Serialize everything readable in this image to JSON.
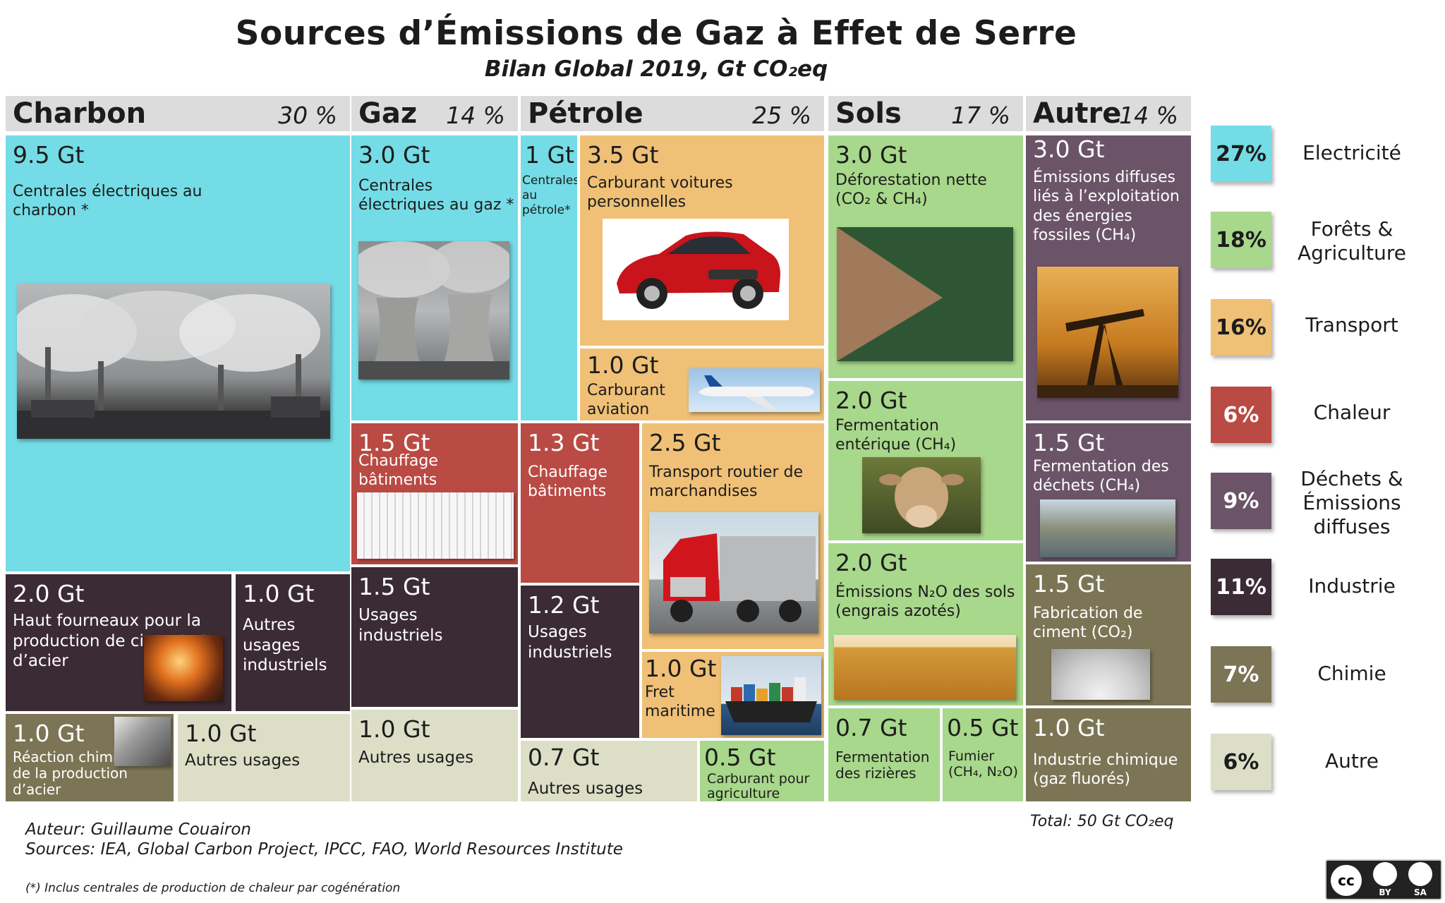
{
  "title": "Sources d’Émissions de Gaz à Effet de Serre",
  "subtitle": "Bilan Global 2019, Gt CO₂eq",
  "headers": [
    {
      "name": "Charbon",
      "pct": "30 %"
    },
    {
      "name": "Gaz",
      "pct": "14 %"
    },
    {
      "name": "Pétrole",
      "pct": "25 %"
    },
    {
      "name": "Sols",
      "pct": "17 %"
    },
    {
      "name": "Autre",
      "pct": "14 %"
    }
  ],
  "colors": {
    "electricite": "#74dce6",
    "forets": "#a8d88b",
    "transport": "#efc076",
    "chaleur": "#ba4a44",
    "dechets": "#6b5468",
    "industrie": "#3a2b34",
    "chimie": "#7c7555",
    "autre": "#dcdec6"
  },
  "chart_data": {
    "type": "treemap",
    "title": "Sources d’Émissions de Gaz à Effet de Serre",
    "subtitle": "Bilan Global 2019, Gt CO₂eq",
    "unit": "Gt CO₂eq",
    "groups": [
      {
        "name": "Charbon",
        "share_pct": 30
      },
      {
        "name": "Gaz",
        "share_pct": 14
      },
      {
        "name": "Pétrole",
        "share_pct": 25
      },
      {
        "name": "Sols",
        "share_pct": 17
      },
      {
        "name": "Autre",
        "share_pct": 14
      }
    ],
    "items": [
      {
        "group": "Charbon",
        "value": 9.5,
        "label": "Centrales électriques au charbon *",
        "category": "Electricité"
      },
      {
        "group": "Charbon",
        "value": 2.0,
        "label": "Haut fourneaux pour la production de ciment et d’acier",
        "category": "Industrie"
      },
      {
        "group": "Charbon",
        "value": 1.0,
        "label": "Autres usages industriels",
        "category": "Industrie"
      },
      {
        "group": "Charbon",
        "value": 1.0,
        "label": "Réaction chimique de la production d’acier",
        "category": "Chimie"
      },
      {
        "group": "Charbon",
        "value": 1.0,
        "label": "Autres usages",
        "category": "Autre"
      },
      {
        "group": "Gaz",
        "value": 3.0,
        "label": "Centrales électriques au gaz *",
        "category": "Electricité"
      },
      {
        "group": "Gaz",
        "value": 1.5,
        "label": "Chauffage bâtiments",
        "category": "Chaleur"
      },
      {
        "group": "Gaz",
        "value": 1.5,
        "label": "Usages industriels",
        "category": "Industrie"
      },
      {
        "group": "Gaz",
        "value": 1.0,
        "label": "Autres usages",
        "category": "Autre"
      },
      {
        "group": "Pétrole",
        "value": 1,
        "label": "Centrales au pétrole*",
        "category": "Electricité"
      },
      {
        "group": "Pétrole",
        "value": 3.5,
        "label": "Carburant voitures personnelles",
        "category": "Transport"
      },
      {
        "group": "Pétrole",
        "value": 1.0,
        "label": "Carburant aviation",
        "category": "Transport"
      },
      {
        "group": "Pétrole",
        "value": 1.3,
        "label": "Chauffage bâtiments",
        "category": "Chaleur"
      },
      {
        "group": "Pétrole",
        "value": 2.5,
        "label": "Transport routier de marchandises",
        "category": "Transport"
      },
      {
        "group": "Pétrole",
        "value": 1.2,
        "label": "Usages industriels",
        "category": "Industrie"
      },
      {
        "group": "Pétrole",
        "value": 1.0,
        "label": "Fret maritime",
        "category": "Transport"
      },
      {
        "group": "Pétrole",
        "value": 0.7,
        "label": "Autres usages",
        "category": "Autre"
      },
      {
        "group": "Pétrole",
        "value": 0.5,
        "label": "Carburant pour agriculture",
        "category": "Forêts & Agriculture"
      },
      {
        "group": "Sols",
        "value": 3.0,
        "label": "Déforestation nette (CO₂ & CH₄)",
        "category": "Forêts & Agriculture"
      },
      {
        "group": "Sols",
        "value": 2.0,
        "label": "Fermentation entérique (CH₄)",
        "category": "Forêts & Agriculture"
      },
      {
        "group": "Sols",
        "value": 2.0,
        "label": "Émissions N₂O des sols (engrais azotés)",
        "category": "Forêts & Agriculture"
      },
      {
        "group": "Sols",
        "value": 0.7,
        "label": "Fermentation des rizières",
        "category": "Forêts & Agriculture"
      },
      {
        "group": "Sols",
        "value": 0.5,
        "label": "Fumier (CH₄, N₂O)",
        "category": "Forêts & Agriculture"
      },
      {
        "group": "Autre",
        "value": 3.0,
        "label": "Émissions diffuses liés à l’exploitation des énergies fossiles (CH₄)",
        "category": "Déchets & Émissions diffuses"
      },
      {
        "group": "Autre",
        "value": 1.5,
        "label": "Fermentation des déchets (CH₄)",
        "category": "Déchets & Émissions diffuses"
      },
      {
        "group": "Autre",
        "value": 1.5,
        "label": "Fabrication de ciment (CO₂)",
        "category": "Chimie"
      },
      {
        "group": "Autre",
        "value": 1.0,
        "label": "Industrie chimique (gaz fluorés)",
        "category": "Chimie"
      }
    ],
    "legend": [
      {
        "pct": "27%",
        "label": "Electricité"
      },
      {
        "pct": "18%",
        "label": "Forêts & Agriculture"
      },
      {
        "pct": "16%",
        "label": "Transport"
      },
      {
        "pct": "6%",
        "label": "Chaleur"
      },
      {
        "pct": "9%",
        "label": "Déchets & Émissions diffuses"
      },
      {
        "pct": "11%",
        "label": "Industrie"
      },
      {
        "pct": "7%",
        "label": "Chimie"
      },
      {
        "pct": "6%",
        "label": "Autre"
      }
    ],
    "total": "Total: 50 Gt CO₂eq"
  },
  "tiles": {
    "charbon_elec": {
      "val": "9.5 Gt",
      "lbl": "Centrales électriques au charbon *"
    },
    "charbon_hf": {
      "val": "2.0 Gt",
      "lbl": "Haut fourneaux pour la production de ciment et d’acier"
    },
    "charbon_ind": {
      "val": "1.0 Gt",
      "lbl": "Autres usages industriels"
    },
    "charbon_chim": {
      "val": "1.0 Gt",
      "lbl": "Réaction chimique de la production d’acier"
    },
    "charbon_autre": {
      "val": "1.0 Gt",
      "lbl": "Autres usages"
    },
    "gaz_elec": {
      "val": "3.0 Gt",
      "lbl": "Centrales électriques au gaz *"
    },
    "gaz_chal": {
      "val": "1.5 Gt",
      "lbl": "Chauffage bâtiments"
    },
    "gaz_ind": {
      "val": "1.5 Gt",
      "lbl": "Usages industriels"
    },
    "gaz_autre": {
      "val": "1.0 Gt",
      "lbl": "Autres usages"
    },
    "pet_elec": {
      "val": "1 Gt",
      "lbl": "Centrales au pétrole*"
    },
    "pet_voit": {
      "val": "3.5 Gt",
      "lbl": "Carburant voitures personnelles"
    },
    "pet_avia": {
      "val": "1.0 Gt",
      "lbl": "Carburant aviation"
    },
    "pet_chal": {
      "val": "1.3 Gt",
      "lbl": "Chauffage bâtiments"
    },
    "pet_routier": {
      "val": "2.5 Gt",
      "lbl": "Transport routier de marchandises"
    },
    "pet_ind": {
      "val": "1.2 Gt",
      "lbl": "Usages industriels"
    },
    "pet_fret": {
      "val": "1.0 Gt",
      "lbl": "Fret maritime"
    },
    "pet_autre": {
      "val": "0.7 Gt",
      "lbl": "Autres usages"
    },
    "pet_agri": {
      "val": "0.5 Gt",
      "lbl": "Carburant pour agriculture"
    },
    "sols_defo": {
      "val": "3.0 Gt",
      "lbl": "Déforestation nette (CO₂ & CH₄)"
    },
    "sols_ferm": {
      "val": "2.0 Gt",
      "lbl": "Fermentation entérique (CH₄)"
    },
    "sols_n2o": {
      "val": "2.0 Gt",
      "lbl": "Émissions N₂O des sols (engrais azotés)"
    },
    "sols_riz": {
      "val": "0.7 Gt",
      "lbl": "Fermentation des rizières"
    },
    "sols_fum": {
      "val": "0.5 Gt",
      "lbl": "Fumier (CH₄, N₂O)"
    },
    "autre_diff": {
      "val": "3.0 Gt",
      "lbl": "Émissions diffuses liés à l’exploitation des énergies fossiles (CH₄)"
    },
    "autre_dech": {
      "val": "1.5 Gt",
      "lbl": "Fermentation des déchets (CH₄)"
    },
    "autre_cim": {
      "val": "1.5 Gt",
      "lbl": "Fabrication de ciment (CO₂)"
    },
    "autre_chim": {
      "val": "1.0 Gt",
      "lbl": "Industrie chimique (gaz fluorés)"
    }
  },
  "legend": [
    {
      "pct": "27%",
      "label": "Electricité"
    },
    {
      "pct": "18%",
      "label": "Forêts & Agriculture"
    },
    {
      "pct": "16%",
      "label": "Transport"
    },
    {
      "pct": "6%",
      "label": "Chaleur"
    },
    {
      "pct": "9%",
      "label": "Déchets & Émissions diffuses"
    },
    {
      "pct": "11%",
      "label": "Industrie"
    },
    {
      "pct": "7%",
      "label": "Chimie"
    },
    {
      "pct": "6%",
      "label": "Autre"
    }
  ],
  "footer": {
    "author": "Auteur: Guillaume Couairon",
    "sources": "Sources: IEA, Global Carbon Project, IPCC, FAO, World Resources Institute",
    "footnote": "(*)  Inclus centrales de production de chaleur par cogénération",
    "total": "Total: 50 Gt CO₂eq"
  },
  "license": {
    "by": "BY",
    "sa": "SA"
  }
}
